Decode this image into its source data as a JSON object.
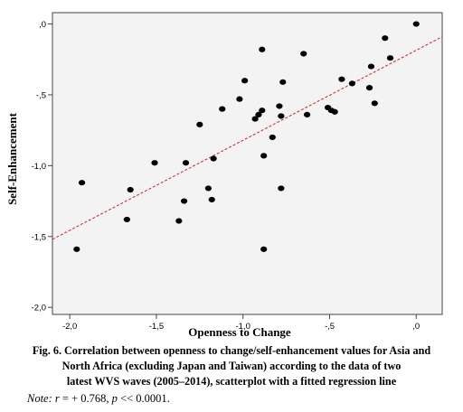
{
  "chart_data": {
    "type": "scatter",
    "xlabel": "Openness to Change",
    "ylabel": "Self-Enhancement",
    "xlim": [
      -2.1,
      0.15
    ],
    "ylim": [
      -2.05,
      0.08
    ],
    "x_ticks": [
      {
        "value": -2.0,
        "label": "-2,0"
      },
      {
        "value": -1.5,
        "label": "-1,5"
      },
      {
        "value": -1.0,
        "label": "-1,0"
      },
      {
        "value": -0.5,
        "label": "-,5"
      },
      {
        "value": 0.0,
        "label": ",0"
      }
    ],
    "y_ticks": [
      {
        "value": 0.0,
        "label": ",0"
      },
      {
        "value": -0.5,
        "label": "-,5"
      },
      {
        "value": -1.0,
        "label": "-1,0"
      },
      {
        "value": -1.5,
        "label": "-1,5"
      },
      {
        "value": -2.0,
        "label": "-2,0"
      }
    ],
    "points": [
      {
        "x": -1.96,
        "y": -1.59
      },
      {
        "x": -1.93,
        "y": -1.12
      },
      {
        "x": -1.67,
        "y": -1.38
      },
      {
        "x": -1.65,
        "y": -1.17
      },
      {
        "x": -1.51,
        "y": -0.98
      },
      {
        "x": -1.37,
        "y": -1.39
      },
      {
        "x": -1.34,
        "y": -1.25
      },
      {
        "x": -1.33,
        "y": -0.98
      },
      {
        "x": -1.25,
        "y": -0.71
      },
      {
        "x": -1.2,
        "y": -1.16
      },
      {
        "x": -1.18,
        "y": -1.24
      },
      {
        "x": -1.17,
        "y": -0.95
      },
      {
        "x": -1.12,
        "y": -0.6
      },
      {
        "x": -1.02,
        "y": -0.53
      },
      {
        "x": -0.99,
        "y": -0.4
      },
      {
        "x": -0.93,
        "y": -0.67
      },
      {
        "x": -0.91,
        "y": -0.64
      },
      {
        "x": -0.89,
        "y": -0.61
      },
      {
        "x": -0.89,
        "y": -0.18
      },
      {
        "x": -0.88,
        "y": -0.93
      },
      {
        "x": -0.88,
        "y": -1.59
      },
      {
        "x": -0.83,
        "y": -0.8
      },
      {
        "x": -0.79,
        "y": -0.58
      },
      {
        "x": -0.78,
        "y": -0.65
      },
      {
        "x": -0.78,
        "y": -1.16
      },
      {
        "x": -0.77,
        "y": -0.41
      },
      {
        "x": -0.65,
        "y": -0.21
      },
      {
        "x": -0.63,
        "y": -0.64
      },
      {
        "x": -0.51,
        "y": -0.59
      },
      {
        "x": -0.49,
        "y": -0.61
      },
      {
        "x": -0.47,
        "y": -0.62
      },
      {
        "x": -0.43,
        "y": -0.39
      },
      {
        "x": -0.37,
        "y": -0.42
      },
      {
        "x": -0.27,
        "y": -0.45
      },
      {
        "x": -0.26,
        "y": -0.3
      },
      {
        "x": -0.24,
        "y": -0.56
      },
      {
        "x": -0.18,
        "y": -0.1
      },
      {
        "x": -0.15,
        "y": -0.24
      },
      {
        "x": 0.0,
        "y": 0.0
      }
    ],
    "fit_line": {
      "x": [
        -2.1,
        0.15
      ],
      "y": [
        -1.52,
        -0.09
      ]
    },
    "grid": false,
    "colors": {
      "points": "#000000",
      "fit_line": "#cc2222",
      "plot_background": "#f3f3f3",
      "axis": "#444444"
    }
  },
  "caption": {
    "line1": "Fig. 6. Correlation between openness to change/self-enhancement values for Asia and",
    "line2": "North Africa (excluding Japan and Taiwan) according to the data of two",
    "line3": "latest WVS waves (2005–2014), scatterplot with a fitted regression line"
  },
  "note": {
    "label": "Note:",
    "r_symbol": "r",
    "r_text": " = + 0.768, ",
    "p_symbol": "p",
    "p_text": " << 0.0001."
  }
}
